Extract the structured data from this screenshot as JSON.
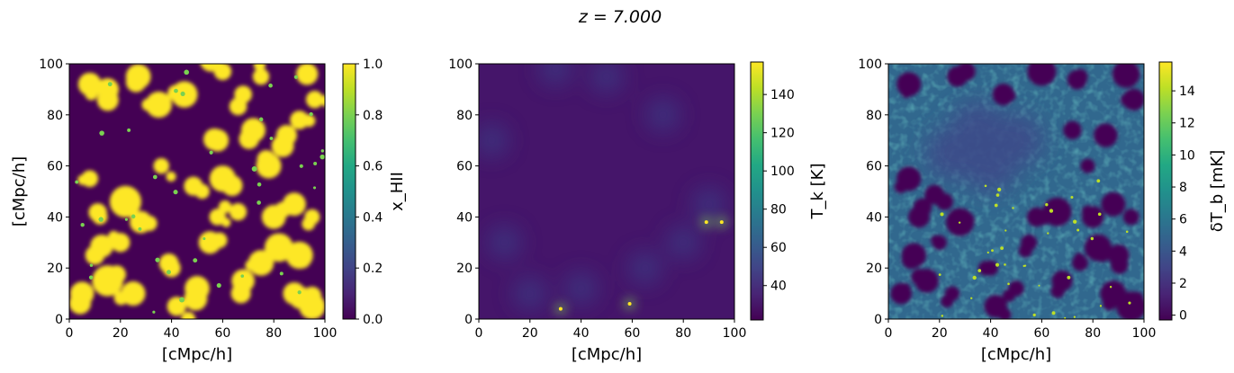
{
  "figure_title": "z = 7.000",
  "chart_data": [
    {
      "type": "heatmap",
      "name": "ionized-fraction-map",
      "xlabel": "[cMpc/h]",
      "ylabel": "[cMpc/h]",
      "xlim": [
        0,
        100
      ],
      "ylim": [
        0,
        100
      ],
      "xticks": [
        "0",
        "20",
        "40",
        "60",
        "80",
        "100"
      ],
      "yticks": [
        "0",
        "20",
        "40",
        "60",
        "80",
        "100"
      ],
      "colorbar": {
        "label": "x_HII",
        "min": 0.0,
        "max": 1.0,
        "ticks": [
          "0.0",
          "0.2",
          "0.4",
          "0.6",
          "0.8",
          "1.0"
        ],
        "tick_values": [
          0.0,
          0.2,
          0.4,
          0.6,
          0.8,
          1.0
        ]
      },
      "colormap": "viridis",
      "description": "binary-like ionized bubbles (yellow, ~1) on neutral background (dark purple, 0)"
    },
    {
      "type": "heatmap",
      "name": "kinetic-temperature-map",
      "xlabel": "[cMpc/h]",
      "ylabel": "",
      "xlim": [
        0,
        100
      ],
      "ylim": [
        0,
        100
      ],
      "xticks": [
        "0",
        "20",
        "40",
        "60",
        "80",
        "100"
      ],
      "yticks": [
        "0",
        "20",
        "40",
        "60",
        "80",
        "100"
      ],
      "colorbar": {
        "label": "T_k [K]",
        "min": 22,
        "max": 157,
        "ticks": [
          "40",
          "60",
          "80",
          "100",
          "120",
          "140"
        ],
        "tick_values": [
          40,
          60,
          80,
          100,
          120,
          140
        ]
      },
      "colormap": "viridis",
      "hotspots": [
        [
          89,
          38
        ],
        [
          95,
          38
        ],
        [
          59,
          6
        ],
        [
          32,
          4
        ]
      ]
    },
    {
      "type": "heatmap",
      "name": "brightness-temperature-map",
      "xlabel": "[cMpc/h]",
      "ylabel": "",
      "xlim": [
        0,
        100
      ],
      "ylim": [
        0,
        100
      ],
      "xticks": [
        "0",
        "20",
        "40",
        "60",
        "80",
        "100"
      ],
      "yticks": [
        "0",
        "20",
        "40",
        "60",
        "80",
        "100"
      ],
      "colorbar": {
        "label": "δT_b [mK]",
        "min": -0.3,
        "max": 15.8,
        "ticks": [
          "0",
          "2",
          "4",
          "6",
          "8",
          "10",
          "12",
          "14"
        ],
        "tick_values": [
          0,
          2,
          4,
          6,
          8,
          10,
          12,
          14
        ]
      },
      "colormap": "viridis"
    }
  ]
}
